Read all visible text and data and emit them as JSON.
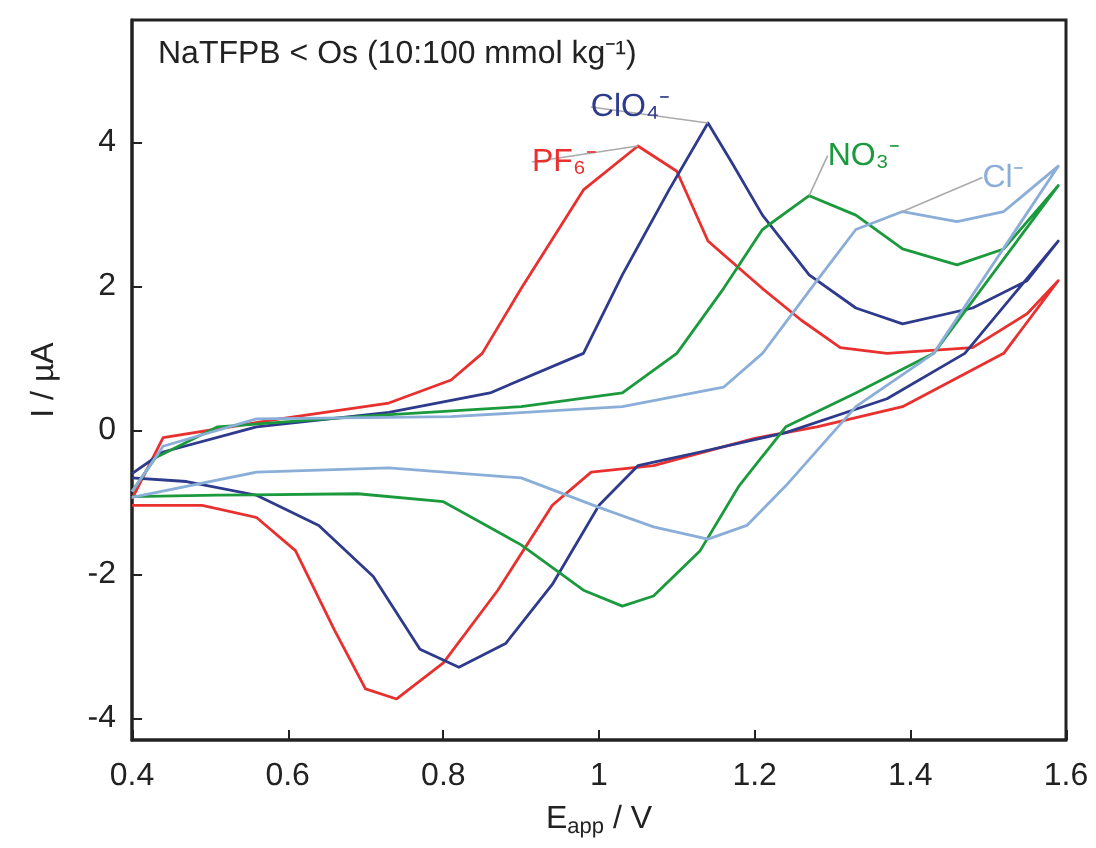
{
  "chart_data": {
    "type": "line",
    "title": "NaTFPB < Os (10:100 mmol kg⁻¹)",
    "xlabel": "E$_{app}$ / V",
    "ylabel": "I / µA",
    "xlim": [
      0.4,
      1.6
    ],
    "xticks": [
      0.4,
      0.6,
      0.8,
      1,
      1.2,
      1.4,
      1.6
    ],
    "ylim": [
      -4.3,
      5.7
    ],
    "yticks": [
      -4,
      -2,
      0,
      2,
      4
    ],
    "series": [
      {
        "name": "PF₆⁻",
        "color": "#e8312f",
        "x": [
          0.4,
          0.44,
          0.59,
          0.73,
          0.81,
          0.85,
          0.9,
          0.98,
          1.05,
          1.1,
          1.14,
          1.21,
          1.26,
          1.31,
          1.37,
          1.48,
          1.55,
          1.59,
          1.52,
          1.39,
          1.28,
          1.2,
          1.07,
          0.99,
          0.94,
          0.87,
          0.8,
          0.74,
          0.7,
          0.66,
          0.61,
          0.56,
          0.49,
          0.4
        ],
        "values": [
          -0.95,
          -0.1,
          0.16,
          0.38,
          0.7,
          1.07,
          1.97,
          3.34,
          3.95,
          3.6,
          2.63,
          1.97,
          1.53,
          1.15,
          1.07,
          1.15,
          1.62,
          2.08,
          1.07,
          0.33,
          0.05,
          -0.11,
          -0.49,
          -0.58,
          -1.04,
          -2.22,
          -3.23,
          -3.73,
          -3.59,
          -2.77,
          -1.67,
          -1.21,
          -1.04,
          -1.04
        ]
      },
      {
        "name": "ClO₄⁻",
        "color": "#2e3a8c",
        "x": [
          0.4,
          0.44,
          0.56,
          0.73,
          0.86,
          0.98,
          1.03,
          1.09,
          1.14,
          1.17,
          1.21,
          1.27,
          1.33,
          1.39,
          1.48,
          1.55,
          1.59,
          1.47,
          1.37,
          1.24,
          1.13,
          1.05,
          1.0,
          0.94,
          0.88,
          0.82,
          0.77,
          0.71,
          0.64,
          0.56,
          0.47,
          0.4
        ],
        "values": [
          -0.6,
          -0.3,
          0.05,
          0.25,
          0.52,
          1.07,
          2.16,
          3.34,
          4.27,
          3.73,
          2.99,
          2.16,
          1.7,
          1.48,
          1.7,
          2.08,
          2.63,
          1.07,
          0.44,
          -0.03,
          -0.3,
          -0.49,
          -1.04,
          -2.14,
          -2.96,
          -3.29,
          -3.04,
          -2.03,
          -1.32,
          -0.9,
          -0.71,
          -0.66
        ]
      },
      {
        "name": "NO₃⁻",
        "color": "#1a9a3c",
        "x": [
          0.4,
          0.43,
          0.51,
          0.69,
          0.9,
          1.03,
          1.1,
          1.16,
          1.21,
          1.27,
          1.33,
          1.39,
          1.46,
          1.52,
          1.59,
          1.43,
          1.33,
          1.24,
          1.18,
          1.13,
          1.07,
          1.03,
          0.98,
          0.9,
          0.8,
          0.69,
          0.51,
          0.4
        ],
        "values": [
          -0.85,
          -0.38,
          0.05,
          0.19,
          0.33,
          0.52,
          1.07,
          1.97,
          2.79,
          3.26,
          2.99,
          2.52,
          2.3,
          2.52,
          3.4,
          1.07,
          0.52,
          0.05,
          -0.77,
          -1.67,
          -2.3,
          -2.44,
          -2.22,
          -1.59,
          -0.99,
          -0.88,
          -0.9,
          -0.92
        ]
      },
      {
        "name": "Cl⁻",
        "color": "#8aaed8",
        "x": [
          0.4,
          0.44,
          0.56,
          0.81,
          1.03,
          1.16,
          1.21,
          1.28,
          1.33,
          1.39,
          1.46,
          1.52,
          1.59,
          1.43,
          1.33,
          1.24,
          1.19,
          1.14,
          1.07,
          1.0,
          0.9,
          0.73,
          0.56,
          0.4
        ],
        "values": [
          -0.85,
          -0.22,
          0.16,
          0.19,
          0.33,
          0.6,
          1.07,
          2.08,
          2.79,
          3.04,
          2.9,
          3.04,
          3.67,
          1.07,
          0.33,
          -0.77,
          -1.32,
          -1.51,
          -1.34,
          -1.07,
          -0.66,
          -0.52,
          -0.58,
          -0.93
        ]
      }
    ]
  }
}
